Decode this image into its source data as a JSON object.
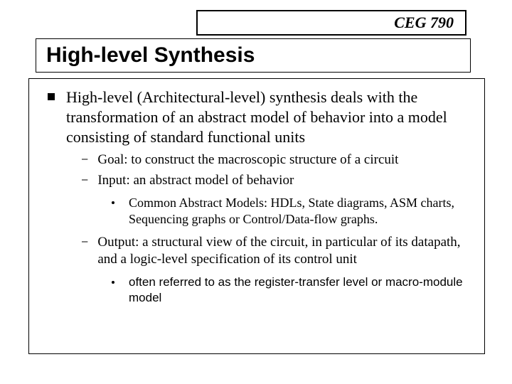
{
  "header": {
    "label": "CEG 790"
  },
  "title": {
    "text": "High-level Synthesis"
  },
  "content": {
    "main": "High-level (Architectural-level) synthesis deals with the transformation of an abstract model of behavior into a model consisting of standard functional units",
    "sub": [
      {
        "text": "Goal: to construct the macroscopic structure of a circuit"
      },
      {
        "text": "Input: an abstract model of behavior"
      }
    ],
    "third1": " Common Abstract Models: HDLs, State diagrams, ASM charts, Sequencing graphs or Control/Data-flow graphs.",
    "sub2": "Output: a structural view of the circuit, in particular of its datapath, and a logic-level specification of its control unit",
    "third2": "often referred to as the register-transfer level or macro-module model"
  }
}
